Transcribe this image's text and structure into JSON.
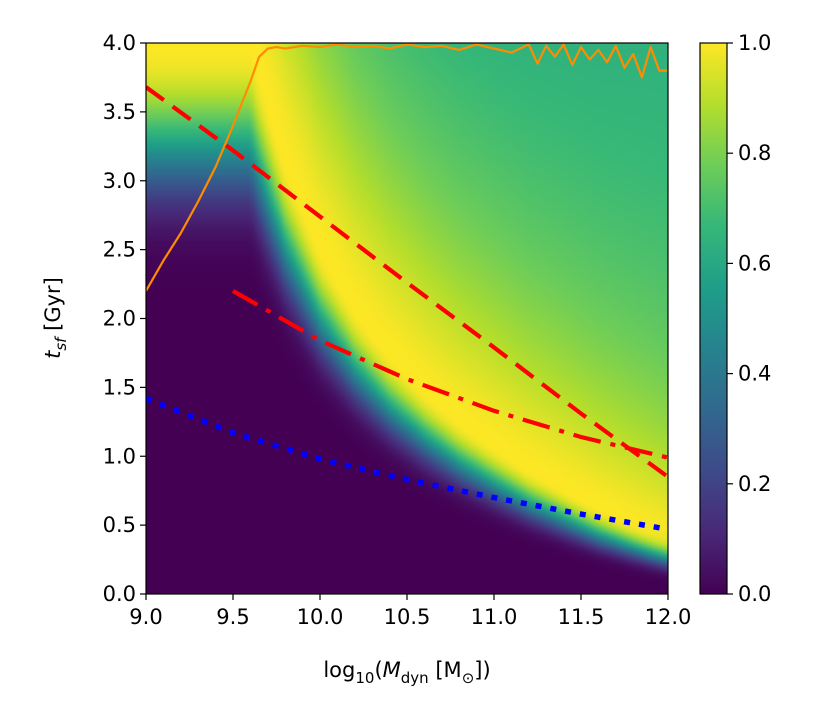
{
  "chart_data": {
    "type": "heatmap",
    "colormap": "viridis",
    "xlabel": "log10(M_dyn [M_sun])",
    "ylabel": "t_sf [Gyr]",
    "xlabel_parts": {
      "pre": "log",
      "sub1": "10",
      "open": "(",
      "var": "M",
      "sub2": "dyn",
      "unit": " [M",
      "sub3": "⊙",
      "close": "])"
    },
    "ylabel_parts": {
      "var": "t",
      "sub": "sf",
      "unit": " [Gyr]"
    },
    "xlim": [
      9.0,
      12.0
    ],
    "ylim": [
      0.0,
      4.0
    ],
    "xticks": [
      9.0,
      9.5,
      10.0,
      10.5,
      11.0,
      11.5,
      12.0
    ],
    "xtick_labels": [
      "9.0",
      "9.5",
      "10.0",
      "10.5",
      "11.0",
      "11.5",
      "12.0"
    ],
    "yticks": [
      0.0,
      0.5,
      1.0,
      1.5,
      2.0,
      2.5,
      3.0,
      3.5,
      4.0
    ],
    "ytick_labels": [
      "0.0",
      "0.5",
      "1.0",
      "1.5",
      "2.0",
      "2.5",
      "3.0",
      "3.5",
      "4.0"
    ],
    "colorbar": {
      "range": [
        0.0,
        1.0
      ],
      "ticks": [
        0.0,
        0.2,
        0.4,
        0.6,
        0.8,
        1.0
      ],
      "tick_labels": [
        "0.0",
        "0.2",
        "0.4",
        "0.6",
        "0.8",
        "1.0"
      ]
    },
    "ridge": {
      "name": "peak ridge (max value)",
      "x": [
        9.6,
        9.8,
        10.0,
        10.2,
        10.4,
        10.6,
        10.8,
        11.0,
        11.2,
        11.4,
        11.6,
        11.8,
        12.0
      ],
      "y": [
        4.0,
        3.12,
        2.5,
        2.06,
        1.73,
        1.47,
        1.25,
        1.07,
        0.9,
        0.76,
        0.62,
        0.5,
        0.38
      ]
    },
    "series": [
      {
        "name": "orange solid",
        "style": "solid",
        "color": "#ff8c00",
        "x": [
          9.0,
          9.1,
          9.2,
          9.3,
          9.4,
          9.5,
          9.6,
          9.65,
          9.7,
          9.75,
          9.8,
          9.9,
          10.0,
          10.1,
          10.2,
          10.3,
          10.4,
          10.5,
          10.6,
          10.7,
          10.8,
          10.9,
          11.0,
          11.1,
          11.2,
          11.25,
          11.3,
          11.35,
          11.4,
          11.45,
          11.5,
          11.55,
          11.6,
          11.65,
          11.7,
          11.75,
          11.8,
          11.85,
          11.9,
          11.95,
          12.0
        ],
        "y": [
          2.2,
          2.42,
          2.62,
          2.85,
          3.1,
          3.4,
          3.72,
          3.9,
          3.96,
          3.97,
          3.96,
          3.98,
          3.97,
          3.99,
          3.97,
          3.98,
          3.96,
          3.99,
          3.97,
          3.98,
          3.95,
          3.99,
          3.96,
          3.93,
          3.99,
          3.85,
          3.98,
          3.9,
          3.99,
          3.84,
          3.97,
          3.88,
          3.95,
          3.86,
          3.98,
          3.82,
          3.92,
          3.75,
          3.97,
          3.8,
          3.8
        ]
      },
      {
        "name": "red dashed",
        "style": "dashed",
        "color": "#ff0000",
        "x": [
          9.0,
          9.5,
          10.0,
          10.5,
          11.0,
          11.5,
          12.0
        ],
        "y": [
          3.68,
          3.22,
          2.74,
          2.26,
          1.79,
          1.31,
          0.85
        ]
      },
      {
        "name": "red dash-dot",
        "style": "dashdot",
        "color": "#ff0000",
        "x": [
          9.5,
          10.0,
          10.5,
          11.0,
          11.5,
          12.0
        ],
        "y": [
          2.2,
          1.84,
          1.56,
          1.33,
          1.14,
          0.99
        ]
      },
      {
        "name": "blue dotted",
        "style": "dotted",
        "color": "#0000ff",
        "x": [
          9.0,
          9.5,
          10.0,
          10.5,
          11.0,
          11.5,
          12.0
        ],
        "y": [
          1.42,
          1.17,
          0.98,
          0.83,
          0.7,
          0.58,
          0.47
        ]
      }
    ]
  }
}
